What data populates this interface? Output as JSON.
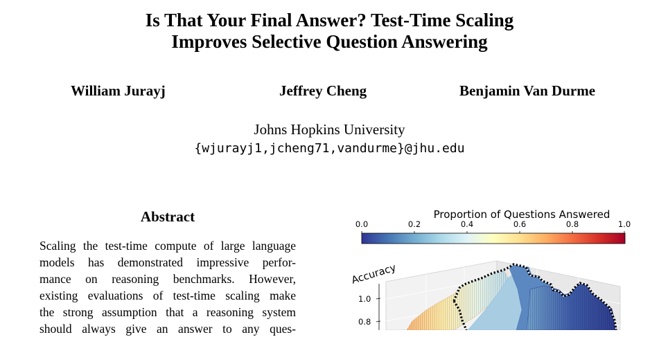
{
  "paper": {
    "title_line1": "Is That Your Final Answer? Test-Time Scaling",
    "title_line2": "Improves Selective Question Answering",
    "authors": [
      "William Jurayj",
      "Jeffrey Cheng",
      "Benjamin Van Durme"
    ],
    "affiliation": "Johns Hopkins University",
    "email": "{wjurayj1,jcheng71,vandurme}@jhu.edu",
    "abstract_heading": "Abstract",
    "abstract_lines": [
      "Scaling the test-time compute of large language",
      "models has demonstrated impressive perfor-",
      "mance on reasoning benchmarks. However,",
      "existing evaluations of test-time scaling make",
      "the strong assumption that a reasoning system",
      "should always give an answer to any ques-"
    ]
  },
  "figure": {
    "colorbar_title": "Proportion of Questions Answered",
    "colorbar_ticks": [
      "0.0",
      "0.2",
      "0.4",
      "0.6",
      "0.8",
      "1.0"
    ],
    "z_axis_label": "Accuracy",
    "z_ticks": [
      "1.0",
      "0.8"
    ],
    "colors": {
      "low": "#313695",
      "mid": "#ffffbf",
      "high": "#a50026"
    }
  }
}
